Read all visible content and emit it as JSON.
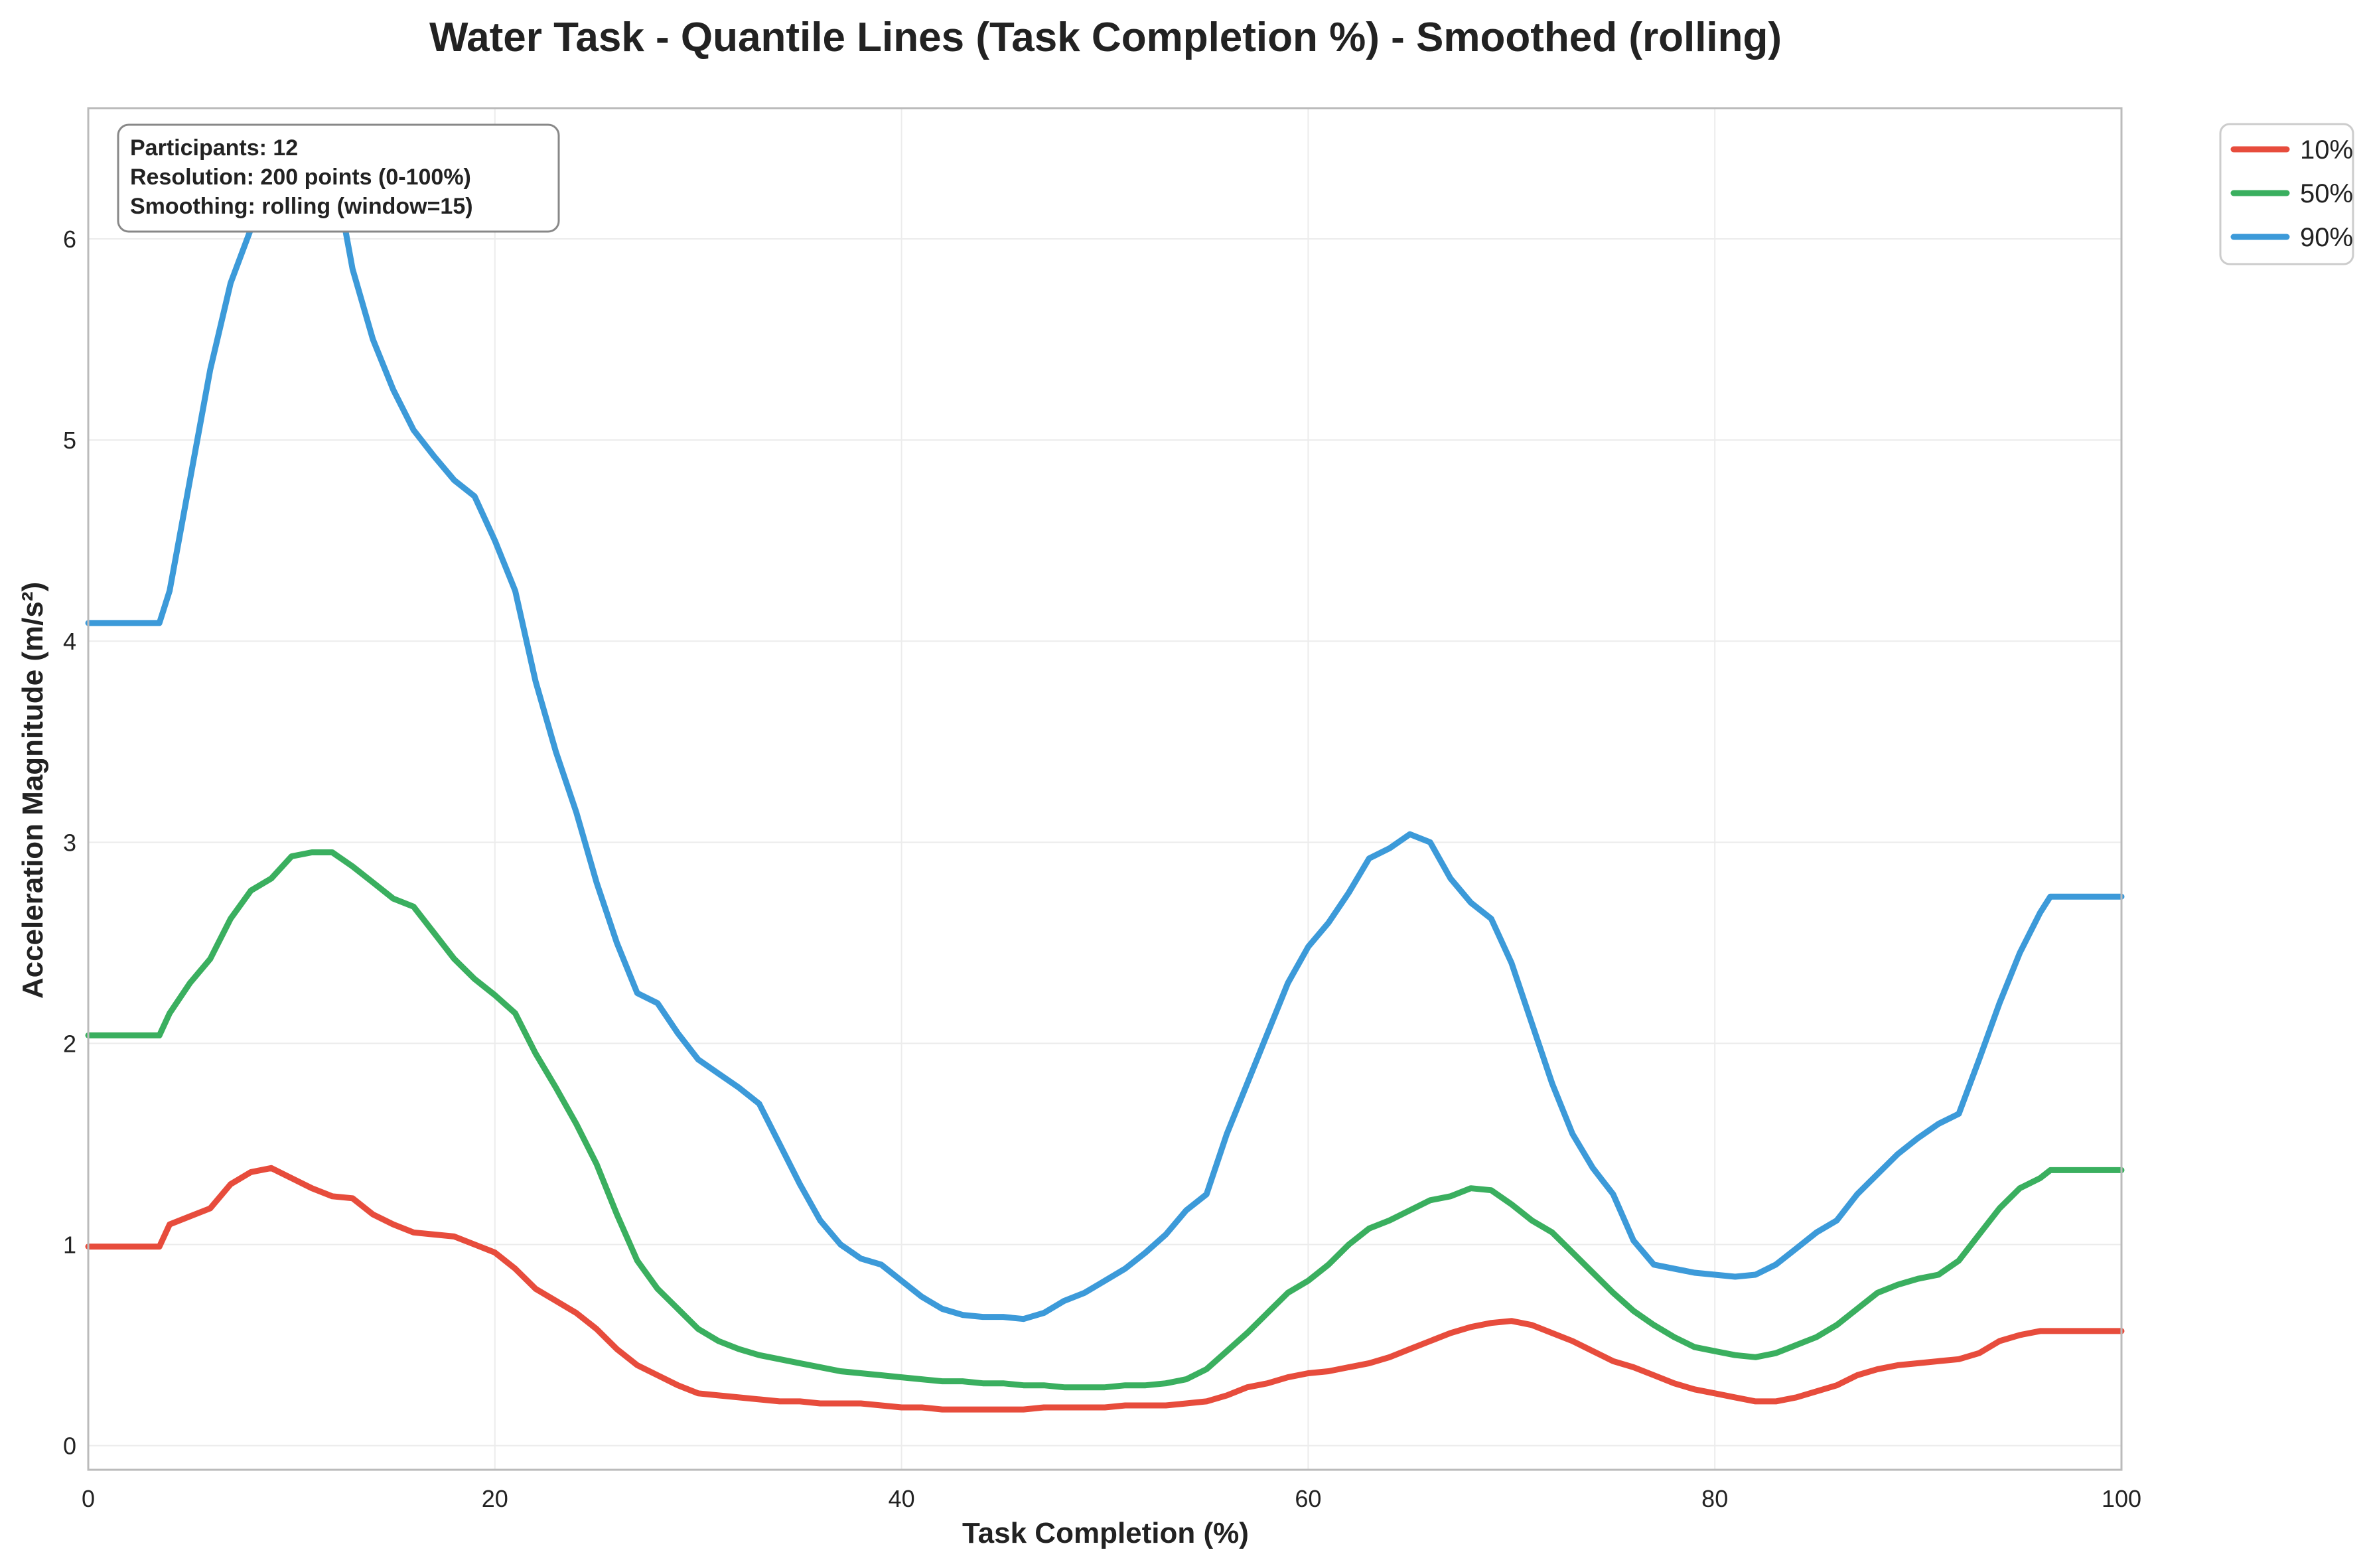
{
  "chart_data": {
    "type": "line",
    "title": "Water Task - Quantile Lines (Task Completion %) - Smoothed (rolling)",
    "xlabel": "Task Completion (%)",
    "ylabel": "Acceleration Magnitude (m/s²)",
    "xlim": [
      0,
      100
    ],
    "ylim": [
      -0.12,
      6.65
    ],
    "xticks": [
      0,
      20,
      40,
      60,
      80,
      100
    ],
    "yticks": [
      0,
      1,
      2,
      3,
      4,
      5,
      6
    ],
    "grid": true,
    "legend_position": "outside top-right",
    "annotation": [
      "Participants: 12",
      "Resolution: 200 points (0-100%)",
      "Smoothing: rolling (window=15)"
    ],
    "series": [
      {
        "name": "10%",
        "color": "#e74c3c",
        "x": [
          0,
          3.5,
          4,
          5,
          6,
          7,
          8,
          9,
          10,
          11,
          12,
          13,
          14,
          15,
          16,
          17,
          18,
          19,
          20,
          21,
          22,
          23,
          24,
          25,
          26,
          27,
          28,
          29,
          30,
          31,
          32,
          33,
          34,
          35,
          36,
          37,
          38,
          39,
          40,
          41,
          42,
          43,
          44,
          45,
          46,
          47,
          48,
          49,
          50,
          51,
          52,
          53,
          54,
          55,
          56,
          57,
          58,
          59,
          60,
          61,
          62,
          63,
          64,
          65,
          66,
          67,
          68,
          69,
          70,
          71,
          72,
          73,
          74,
          75,
          76,
          77,
          78,
          79,
          80,
          81,
          82,
          83,
          84,
          85,
          86,
          87,
          88,
          89,
          90,
          91,
          92,
          93,
          94,
          95,
          96,
          96.5,
          100
        ],
        "y": [
          0.99,
          0.99,
          1.1,
          1.14,
          1.18,
          1.3,
          1.36,
          1.38,
          1.33,
          1.28,
          1.24,
          1.23,
          1.15,
          1.1,
          1.06,
          1.05,
          1.04,
          1.0,
          0.96,
          0.88,
          0.78,
          0.72,
          0.66,
          0.58,
          0.48,
          0.4,
          0.35,
          0.3,
          0.26,
          0.25,
          0.24,
          0.23,
          0.22,
          0.22,
          0.21,
          0.21,
          0.21,
          0.2,
          0.19,
          0.19,
          0.18,
          0.18,
          0.18,
          0.18,
          0.18,
          0.19,
          0.19,
          0.19,
          0.19,
          0.2,
          0.2,
          0.2,
          0.21,
          0.22,
          0.25,
          0.29,
          0.31,
          0.34,
          0.36,
          0.37,
          0.39,
          0.41,
          0.44,
          0.48,
          0.52,
          0.56,
          0.59,
          0.61,
          0.62,
          0.6,
          0.56,
          0.52,
          0.47,
          0.42,
          0.39,
          0.35,
          0.31,
          0.28,
          0.26,
          0.24,
          0.22,
          0.22,
          0.24,
          0.27,
          0.3,
          0.35,
          0.38,
          0.4,
          0.41,
          0.42,
          0.43,
          0.46,
          0.52,
          0.55,
          0.57,
          0.57,
          0.57
        ]
      },
      {
        "name": "50%",
        "color": "#3aaf5f",
        "x": [
          0,
          3.5,
          4,
          5,
          6,
          7,
          8,
          9,
          10,
          11,
          12,
          13,
          14,
          15,
          16,
          17,
          18,
          19,
          20,
          21,
          22,
          23,
          24,
          25,
          26,
          27,
          28,
          29,
          30,
          31,
          32,
          33,
          34,
          35,
          36,
          37,
          38,
          39,
          40,
          41,
          42,
          43,
          44,
          45,
          46,
          47,
          48,
          49,
          50,
          51,
          52,
          53,
          54,
          55,
          56,
          57,
          58,
          59,
          60,
          61,
          62,
          63,
          64,
          65,
          66,
          67,
          68,
          69,
          70,
          71,
          72,
          73,
          74,
          75,
          76,
          77,
          78,
          79,
          80,
          81,
          82,
          83,
          84,
          85,
          86,
          87,
          88,
          89,
          90,
          91,
          92,
          93,
          94,
          95,
          96,
          96.5,
          100
        ],
        "y": [
          2.04,
          2.04,
          2.15,
          2.3,
          2.42,
          2.62,
          2.76,
          2.82,
          2.93,
          2.95,
          2.95,
          2.88,
          2.8,
          2.72,
          2.68,
          2.55,
          2.42,
          2.32,
          2.24,
          2.15,
          1.95,
          1.78,
          1.6,
          1.4,
          1.15,
          0.92,
          0.78,
          0.68,
          0.58,
          0.52,
          0.48,
          0.45,
          0.43,
          0.41,
          0.39,
          0.37,
          0.36,
          0.35,
          0.34,
          0.33,
          0.32,
          0.32,
          0.31,
          0.31,
          0.3,
          0.3,
          0.29,
          0.29,
          0.29,
          0.3,
          0.3,
          0.31,
          0.33,
          0.38,
          0.47,
          0.56,
          0.66,
          0.76,
          0.82,
          0.9,
          1.0,
          1.08,
          1.12,
          1.17,
          1.22,
          1.24,
          1.28,
          1.27,
          1.2,
          1.12,
          1.06,
          0.96,
          0.86,
          0.76,
          0.67,
          0.6,
          0.54,
          0.49,
          0.47,
          0.45,
          0.44,
          0.46,
          0.5,
          0.54,
          0.6,
          0.68,
          0.76,
          0.8,
          0.83,
          0.85,
          0.92,
          1.05,
          1.18,
          1.28,
          1.33,
          1.37,
          1.37
        ]
      },
      {
        "name": "90%",
        "color": "#3c9ad9",
        "x": [
          0,
          3.5,
          4,
          5,
          6,
          7,
          8,
          9,
          10,
          11,
          12,
          13,
          14,
          15,
          16,
          17,
          18,
          19,
          20,
          21,
          22,
          23,
          24,
          25,
          26,
          27,
          28,
          29,
          30,
          31,
          32,
          33,
          34,
          35,
          36,
          37,
          38,
          39,
          40,
          41,
          42,
          43,
          44,
          45,
          46,
          47,
          48,
          49,
          50,
          51,
          52,
          53,
          54,
          55,
          56,
          57,
          58,
          59,
          60,
          61,
          62,
          63,
          64,
          65,
          66,
          67,
          68,
          69,
          70,
          71,
          72,
          73,
          74,
          75,
          76,
          77,
          78,
          79,
          80,
          81,
          82,
          83,
          84,
          85,
          86,
          87,
          88,
          89,
          90,
          91,
          92,
          93,
          94,
          95,
          96,
          96.5,
          100
        ],
        "y": [
          4.09,
          4.09,
          4.25,
          4.8,
          5.35,
          5.78,
          6.05,
          6.2,
          6.35,
          6.55,
          6.4,
          5.85,
          5.5,
          5.25,
          5.05,
          4.92,
          4.8,
          4.72,
          4.5,
          4.25,
          3.8,
          3.45,
          3.15,
          2.8,
          2.5,
          2.25,
          2.2,
          2.05,
          1.92,
          1.85,
          1.78,
          1.7,
          1.5,
          1.3,
          1.12,
          1.0,
          0.93,
          0.9,
          0.82,
          0.74,
          0.68,
          0.65,
          0.64,
          0.64,
          0.63,
          0.66,
          0.72,
          0.76,
          0.82,
          0.88,
          0.96,
          1.05,
          1.17,
          1.25,
          1.55,
          1.8,
          2.05,
          2.3,
          2.48,
          2.6,
          2.75,
          2.92,
          2.97,
          3.04,
          3.0,
          2.82,
          2.7,
          2.62,
          2.4,
          2.1,
          1.8,
          1.55,
          1.38,
          1.25,
          1.02,
          0.9,
          0.88,
          0.86,
          0.85,
          0.84,
          0.85,
          0.9,
          0.98,
          1.06,
          1.12,
          1.25,
          1.35,
          1.45,
          1.53,
          1.6,
          1.65,
          1.92,
          2.2,
          2.45,
          2.65,
          2.73,
          2.73
        ]
      }
    ]
  }
}
